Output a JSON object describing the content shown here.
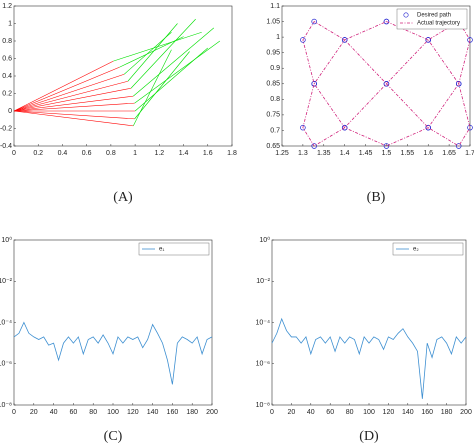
{
  "chart_data": [
    {
      "type": "arm",
      "caption": "(A)",
      "xlim": [
        0,
        1.8
      ],
      "xticks": [
        0,
        0.2,
        0.4,
        0.6,
        0.8,
        1,
        1.2,
        1.4,
        1.6,
        1.8
      ],
      "ylim": [
        -0.4,
        1.2
      ],
      "yticks": [
        -0.4,
        -0.2,
        0,
        0.2,
        0.4,
        0.6,
        0.8,
        1,
        1.2
      ],
      "link1_color": "#ff0000",
      "link2_color": "#00e000",
      "elbow_x": [
        0.985,
        0.996,
        1.0,
        0.996,
        0.985,
        0.966,
        0.94,
        0.91,
        0.87,
        0.82
      ],
      "elbow_y": [
        -0.17,
        -0.09,
        0,
        0.09,
        0.17,
        0.26,
        0.34,
        0.42,
        0.5,
        0.57
      ],
      "tip_x": [
        1.3,
        1.45,
        1.6,
        1.7,
        1.65,
        1.5,
        1.35,
        1.3,
        1.4,
        1.55
      ],
      "tip_y": [
        0.7,
        0.68,
        0.72,
        0.8,
        0.95,
        1.05,
        1.0,
        0.9,
        0.85,
        0.9
      ]
    },
    {
      "type": "path",
      "caption": "(B)",
      "legend": "upper right",
      "xlim": [
        1.25,
        1.7
      ],
      "xticks": [
        1.25,
        1.3,
        1.35,
        1.4,
        1.45,
        1.5,
        1.55,
        1.6,
        1.65,
        1.7
      ],
      "ylim": [
        0.65,
        1.1
      ],
      "yticks": [
        0.65,
        0.7,
        0.75,
        0.8,
        0.85,
        0.9,
        0.95,
        1,
        1.05,
        1.1
      ],
      "series": [
        {
          "name": "Desired path",
          "color": "#2020d0",
          "style": "circle",
          "x": [
            1.5,
            1.6,
            1.673,
            1.7,
            1.673,
            1.6,
            1.5,
            1.4,
            1.327,
            1.3,
            1.327,
            1.4,
            1.5,
            1.6,
            1.673,
            1.7,
            1.673,
            1.6,
            1.5,
            1.4,
            1.327,
            1.3,
            1.327,
            1.4,
            1.5
          ],
          "y": [
            1.05,
            0.991,
            0.85,
            0.709,
            0.65,
            0.709,
            0.85,
            0.991,
            1.05,
            0.991,
            0.85,
            0.709,
            0.65,
            0.709,
            0.85,
            0.991,
            1.05,
            0.991,
            0.85,
            0.709,
            0.65,
            0.709,
            0.85,
            0.991,
            1.05
          ]
        },
        {
          "name": "Actual trajectory",
          "color": "#d0207a",
          "style": "dashdot",
          "x": [
            1.5,
            1.6,
            1.673,
            1.7,
            1.673,
            1.6,
            1.5,
            1.4,
            1.327,
            1.3,
            1.327,
            1.4,
            1.5,
            1.6,
            1.673,
            1.7,
            1.673,
            1.6,
            1.5,
            1.4,
            1.327,
            1.3,
            1.327,
            1.4,
            1.5
          ],
          "y": [
            1.05,
            0.991,
            0.85,
            0.709,
            0.65,
            0.709,
            0.85,
            0.991,
            1.05,
            0.991,
            0.85,
            0.709,
            0.65,
            0.709,
            0.85,
            0.991,
            1.05,
            0.991,
            0.85,
            0.709,
            0.65,
            0.709,
            0.85,
            0.991,
            1.05
          ]
        }
      ]
    },
    {
      "type": "line",
      "caption": "(C)",
      "log_y": true,
      "legend": "upper right",
      "xlim": [
        0,
        200
      ],
      "xticks": [
        0,
        20,
        40,
        60,
        80,
        100,
        120,
        140,
        160,
        180,
        200
      ],
      "ylim": [
        1e-08,
        1
      ],
      "yticks": [
        {
          "value": 1,
          "label": "10⁰"
        },
        {
          "value": 0.01,
          "label": "10⁻²"
        },
        {
          "value": 0.0001,
          "label": "10⁻⁴"
        },
        {
          "value": 1e-06,
          "label": "10⁻⁶"
        },
        {
          "value": 1e-08,
          "label": "10⁻⁸"
        }
      ],
      "x": [
        0,
        5,
        10,
        15,
        20,
        25,
        30,
        35,
        40,
        45,
        50,
        55,
        60,
        65,
        70,
        75,
        80,
        85,
        90,
        95,
        100,
        105,
        110,
        115,
        120,
        125,
        130,
        135,
        140,
        145,
        150,
        155,
        160,
        165,
        170,
        175,
        180,
        185,
        190,
        195,
        200
      ],
      "series": [
        {
          "name": "e₁",
          "color": "#3d8fd1",
          "values": [
            2e-05,
            3e-05,
            0.0001,
            3e-05,
            2e-05,
            1.5e-05,
            2e-05,
            8e-06,
            1e-05,
            1.5e-06,
            1e-05,
            2e-05,
            1e-05,
            2e-05,
            3e-06,
            1.5e-05,
            2e-05,
            1e-05,
            2.5e-05,
            1e-05,
            3e-06,
            2e-05,
            1e-05,
            2e-05,
            1.5e-05,
            2e-05,
            6e-06,
            1.5e-05,
            8e-05,
            3e-05,
            1e-05,
            1.5e-06,
            1e-07,
            1e-05,
            2e-05,
            1.5e-05,
            1e-05,
            2e-05,
            3e-06,
            1.5e-05,
            2e-05
          ]
        }
      ]
    },
    {
      "type": "line",
      "caption": "(D)",
      "log_y": true,
      "legend": "upper right",
      "xlim": [
        0,
        200
      ],
      "xticks": [
        0,
        20,
        40,
        60,
        80,
        100,
        120,
        140,
        160,
        180,
        200
      ],
      "ylim": [
        1e-08,
        1
      ],
      "yticks": [
        {
          "value": 1,
          "label": "10⁰"
        },
        {
          "value": 0.01,
          "label": "10⁻²"
        },
        {
          "value": 0.0001,
          "label": "10⁻⁴"
        },
        {
          "value": 1e-06,
          "label": "10⁻⁶"
        },
        {
          "value": 1e-08,
          "label": "10⁻⁸"
        }
      ],
      "x": [
        0,
        5,
        10,
        15,
        20,
        25,
        30,
        35,
        40,
        45,
        50,
        55,
        60,
        65,
        70,
        75,
        80,
        85,
        90,
        95,
        100,
        105,
        110,
        115,
        120,
        125,
        130,
        135,
        140,
        145,
        150,
        155,
        160,
        165,
        170,
        175,
        180,
        185,
        190,
        195,
        200
      ],
      "series": [
        {
          "name": "e₂",
          "color": "#3d8fd1",
          "values": [
            1e-05,
            3e-05,
            0.00015,
            4e-05,
            2e-05,
            2e-05,
            1e-05,
            2e-05,
            3e-06,
            1.5e-05,
            2e-05,
            1e-05,
            2e-05,
            4e-06,
            2e-05,
            1e-05,
            2e-05,
            1.5e-05,
            3e-06,
            2e-05,
            1e-05,
            2e-05,
            1.5e-05,
            5e-06,
            2e-05,
            1.5e-05,
            3e-05,
            5e-05,
            2e-05,
            1e-05,
            4e-06,
            2e-08,
            1e-05,
            2e-06,
            1.5e-05,
            2e-05,
            1e-05,
            3e-06,
            2e-05,
            1e-05,
            2e-05
          ]
        }
      ]
    }
  ]
}
